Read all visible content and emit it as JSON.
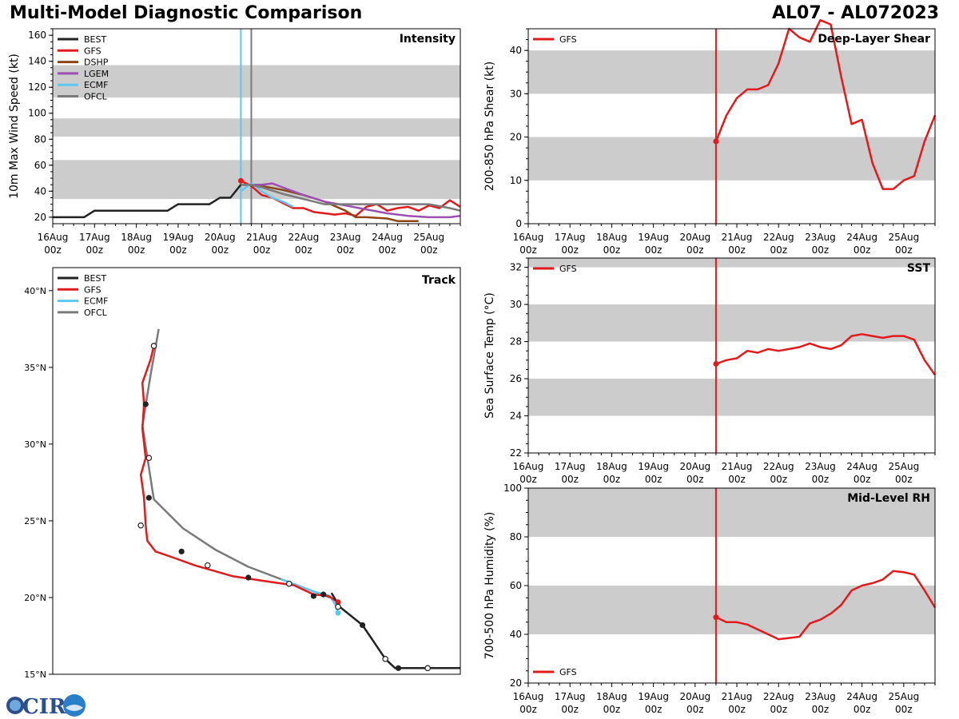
{
  "header": {
    "title_left": "Multi-Model Diagnostic Comparison",
    "title_right": "AL07 - AL072023"
  },
  "logo": {
    "text": "CIRA"
  },
  "colors": {
    "BEST": "#222222",
    "GFS": "#e31a1c",
    "DSHP": "#8b4513",
    "LGEM": "#9c4fb0",
    "ECMF": "#5bc8f0",
    "OFCL": "#7a7a7a",
    "band": "#cccccc"
  },
  "time_axis": {
    "xlim": [
      0,
      9.75
    ],
    "tick_days": [
      "16Aug",
      "17Aug",
      "18Aug",
      "19Aug",
      "20Aug",
      "21Aug",
      "22Aug",
      "23Aug",
      "24Aug",
      "25Aug"
    ],
    "tick_hour": "00z",
    "init_time": 4.5,
    "ofcl_time": 4.75
  },
  "chart_data": [
    {
      "id": "intensity",
      "type": "line",
      "title": "Intensity",
      "ylabel": "10m Max Wind Speed (kt)",
      "ylim": [
        15,
        165
      ],
      "yticks": [
        20,
        40,
        60,
        80,
        100,
        120,
        140,
        160
      ],
      "bands": [
        [
          34,
          64
        ],
        [
          82,
          96
        ],
        [
          112,
          137
        ]
      ],
      "vlines": [
        {
          "x": 4.5,
          "color": "ECMF"
        },
        {
          "x": 4.75,
          "color": "OFCL"
        }
      ],
      "legend": [
        "BEST",
        "GFS",
        "DSHP",
        "LGEM",
        "ECMF",
        "OFCL"
      ],
      "series": [
        {
          "name": "BEST",
          "x": [
            0,
            0.75,
            1,
            2.75,
            3,
            3.75,
            4,
            4.25,
            4.5,
            4.75
          ],
          "y": [
            20,
            20,
            25,
            25,
            30,
            30,
            35,
            35,
            45,
            45
          ]
        },
        {
          "name": "GFS",
          "x": [
            4.5,
            4.75,
            5,
            5.25,
            5.5,
            5.75,
            6,
            6.25,
            6.5,
            6.75,
            7,
            7.25,
            7.5,
            7.75,
            8,
            8.25,
            8.5,
            8.75,
            9,
            9.25,
            9.5,
            9.75
          ],
          "y": [
            48,
            44,
            37,
            35,
            31,
            27,
            27,
            24,
            23,
            22,
            23,
            21,
            28,
            30,
            25,
            27,
            28,
            25,
            29,
            27,
            33,
            28
          ]
        },
        {
          "name": "DSHP",
          "x": [
            4.5,
            5,
            5.5,
            6,
            6.5,
            7,
            7.25,
            7.5,
            8,
            8.25,
            8.75
          ],
          "y": [
            45,
            44,
            41,
            37,
            32,
            25,
            20,
            20,
            19,
            17,
            17
          ]
        },
        {
          "name": "LGEM",
          "x": [
            4.5,
            5,
            5.25,
            5.5,
            6,
            6.5,
            7,
            7.5,
            8,
            8.5,
            9,
            9.5,
            9.75
          ],
          "y": [
            45,
            45,
            46,
            43,
            37,
            32,
            29,
            26,
            23,
            21,
            20,
            20,
            21
          ]
        },
        {
          "name": "ECMF",
          "x": [
            4.5,
            4.75,
            5,
            5.25,
            5.5,
            5.75
          ],
          "y": [
            40,
            46,
            40,
            35,
            32,
            28
          ]
        },
        {
          "name": "OFCL",
          "x": [
            4.5,
            4.75,
            5,
            5.5,
            6,
            6.5,
            7,
            7.5,
            8,
            8.5,
            9,
            9.5,
            9.75
          ],
          "y": [
            45,
            45,
            43,
            38,
            34,
            30,
            30,
            30,
            30,
            30,
            30,
            27,
            25
          ]
        }
      ]
    },
    {
      "id": "shear",
      "type": "line",
      "title": "Deep-Layer Shear",
      "ylabel": "200-850 hPa Shear (kt)",
      "ylim": [
        0,
        45
      ],
      "yticks": [
        0,
        10,
        20,
        30,
        40
      ],
      "bands": [
        [
          10,
          20
        ],
        [
          30,
          40
        ]
      ],
      "vlines": [
        {
          "x": 4.5,
          "color": "GFS"
        }
      ],
      "legend": [
        "GFS"
      ],
      "series": [
        {
          "name": "GFS",
          "x": [
            4.5,
            4.75,
            5,
            5.25,
            5.5,
            5.75,
            6,
            6.25,
            6.5,
            6.75,
            7,
            7.25,
            7.5,
            7.75,
            8,
            8.25,
            8.5,
            8.75,
            9,
            9.25,
            9.5,
            9.75
          ],
          "y": [
            19,
            25,
            29,
            31,
            31,
            32,
            37,
            45,
            43,
            42,
            47,
            46,
            34,
            23,
            24,
            14,
            8,
            8,
            10,
            11,
            19,
            25
          ]
        }
      ]
    },
    {
      "id": "sst",
      "type": "line",
      "title": "SST",
      "ylabel": "Sea Surface Temp (°C)",
      "ylim": [
        22,
        32.5
      ],
      "yticks": [
        22,
        24,
        26,
        28,
        30,
        32
      ],
      "bands": [
        [
          24,
          26
        ],
        [
          28,
          30
        ],
        [
          32,
          32.5
        ]
      ],
      "vlines": [
        {
          "x": 4.5,
          "color": "GFS"
        }
      ],
      "legend": [
        "GFS"
      ],
      "series": [
        {
          "name": "GFS",
          "x": [
            4.5,
            4.75,
            5,
            5.25,
            5.5,
            5.75,
            6,
            6.25,
            6.5,
            6.75,
            7,
            7.25,
            7.5,
            7.75,
            8,
            8.25,
            8.5,
            8.75,
            9,
            9.25,
            9.5,
            9.75
          ],
          "y": [
            26.8,
            27.0,
            27.1,
            27.5,
            27.4,
            27.6,
            27.5,
            27.6,
            27.7,
            27.9,
            27.7,
            27.6,
            27.8,
            28.3,
            28.4,
            28.3,
            28.2,
            28.3,
            28.3,
            28.1,
            27.0,
            26.2
          ]
        }
      ]
    },
    {
      "id": "rh",
      "type": "line",
      "title": "Mid-Level RH",
      "ylabel": "700-500 hPa Humidity (%)",
      "ylim": [
        20,
        100
      ],
      "yticks": [
        20,
        40,
        60,
        80,
        100
      ],
      "bands": [
        [
          40,
          60
        ],
        [
          80,
          100
        ]
      ],
      "vlines": [
        {
          "x": 4.5,
          "color": "GFS"
        }
      ],
      "legend": [
        "GFS"
      ],
      "series": [
        {
          "name": "GFS",
          "x": [
            4.5,
            4.75,
            5,
            5.25,
            5.5,
            5.75,
            6,
            6.25,
            6.5,
            6.75,
            7,
            7.25,
            7.5,
            7.75,
            8,
            8.25,
            8.5,
            8.75,
            9,
            9.25,
            9.5,
            9.75
          ],
          "y": [
            47,
            45,
            45,
            44,
            42,
            40,
            38,
            38.5,
            39,
            44.5,
            46,
            48.5,
            52,
            58,
            60,
            61,
            62.5,
            66,
            65.5,
            64.5,
            58,
            51
          ]
        }
      ]
    },
    {
      "id": "track",
      "type": "line",
      "title": "Track",
      "xlim": [
        -60,
        -35
      ],
      "ylim": [
        15,
        41.5
      ],
      "yticks": [
        15,
        20,
        25,
        30,
        35,
        40
      ],
      "ytick_labels": [
        "15°N",
        "20°N",
        "25°N",
        "30°N",
        "35°N",
        "40°N"
      ],
      "legend": [
        "BEST",
        "GFS",
        "ECMF",
        "OFCL"
      ],
      "series": [
        {
          "name": "BEST",
          "lon": [
            -35,
            -38.5,
            -39,
            -39.6,
            -41,
            -42.4,
            -42.9
          ],
          "lat": [
            15.4,
            15.4,
            15.4,
            16,
            18.2,
            19.4,
            20.3
          ]
        },
        {
          "name": "GFS",
          "lon": [
            -42.5,
            -43.1,
            -44,
            -45.2,
            -47.2,
            -49,
            -51.3,
            -52.6,
            -53.7,
            -54.2,
            -54.3,
            -54.4,
            -54.6,
            -54.3,
            -54.5,
            -54.4,
            -54.5,
            -54.0,
            -53.8
          ],
          "lat": [
            19.7,
            20.1,
            20.2,
            20.8,
            21.1,
            21.4,
            22.1,
            22.6,
            23.0,
            23.7,
            24.7,
            26.5,
            28.0,
            29.1,
            31.0,
            32.6,
            34.0,
            35.5,
            36.4
          ]
        },
        {
          "name": "ECMF",
          "lon": [
            -42.5,
            -42.7,
            -43.0,
            -44.0,
            -45.0,
            -46.0
          ],
          "lat": [
            19.0,
            19.6,
            20.1,
            20.4,
            20.8,
            21.2
          ]
        },
        {
          "name": "OFCL",
          "lon": [
            -43.0,
            -45.5,
            -48.0,
            -50.0,
            -52.0,
            -53.8,
            -54.5,
            -54.0,
            -53.5
          ],
          "lat": [
            20.0,
            21.0,
            22.0,
            23.1,
            24.5,
            26.4,
            31.2,
            34.5,
            37.5
          ]
        },
        {
          "name": "BEST_open_markers",
          "lon": [
            -39.6,
            -37.0,
            -42.5,
            -45.5,
            -50.5,
            -54.6,
            -54.1,
            -53.8
          ],
          "lat": [
            16.0,
            15.4,
            19.4,
            20.9,
            22.1,
            24.7,
            29.1,
            36.4
          ]
        },
        {
          "name": "BEST_filled_markers",
          "lon": [
            -38.8,
            -41.0,
            -43.4,
            -44.0,
            -48.0,
            -52.1,
            -54.1,
            -54.3
          ],
          "lat": [
            15.4,
            18.2,
            20.2,
            20.1,
            21.3,
            23.0,
            26.5,
            32.6
          ]
        }
      ]
    }
  ]
}
